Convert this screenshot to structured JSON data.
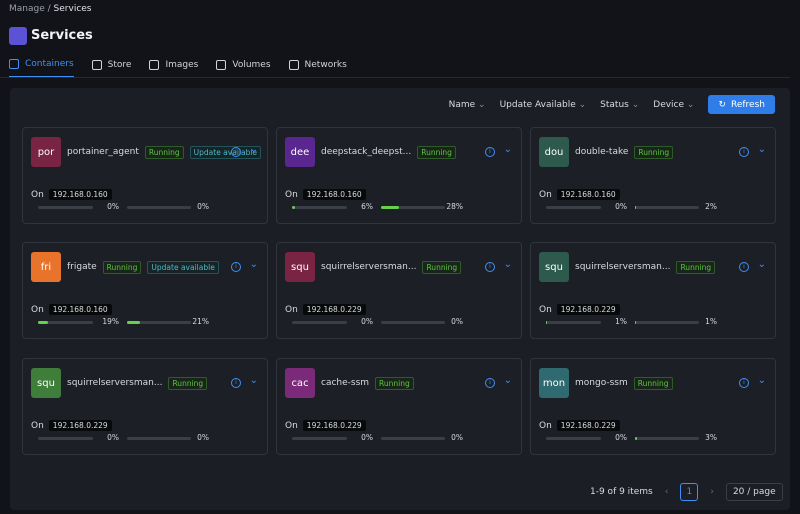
{
  "breadcrumb": {
    "items": [
      "Manage",
      "Services"
    ],
    "separator": "/"
  },
  "header": {
    "title": "Services"
  },
  "tabs": [
    {
      "label": "Containers",
      "active": true
    },
    {
      "label": "Store",
      "active": false
    },
    {
      "label": "Images",
      "active": false
    },
    {
      "label": "Volumes",
      "active": false
    },
    {
      "label": "Networks",
      "active": false
    }
  ],
  "filters": [
    "Name",
    "Update Available",
    "Status",
    "Device"
  ],
  "refresh_button": "Refresh",
  "cards": [
    {
      "avatar": "por",
      "color": "#7a2443",
      "name": "portainer_agent",
      "tags": [
        "Running",
        "Update available"
      ],
      "location_label": "On",
      "ip": "192.168.0.160",
      "cpu": {
        "value": 0,
        "label": "0%"
      },
      "memory": {
        "value": 0,
        "label": "0%"
      }
    },
    {
      "avatar": "dee",
      "color": "#5a2690",
      "name": "deepstack_deepst...",
      "tags": [
        "Running"
      ],
      "location_label": "On",
      "ip": "192.168.0.160",
      "cpu": {
        "value": 6,
        "label": "6%"
      },
      "memory": {
        "value": 28,
        "label": "28%"
      }
    },
    {
      "avatar": "dou",
      "color": "#2e5a4e",
      "name": "double-take",
      "tags": [
        "Running"
      ],
      "location_label": "On",
      "ip": "192.168.0.160",
      "cpu": {
        "value": 0,
        "label": "0%"
      },
      "memory": {
        "value": 2,
        "label": "2%"
      }
    },
    {
      "avatar": "fri",
      "color": "#e8742c",
      "name": "frigate",
      "tags": [
        "Running",
        "Update available"
      ],
      "location_label": "On",
      "ip": "192.168.0.160",
      "cpu": {
        "value": 19,
        "label": "19%"
      },
      "memory": {
        "value": 21,
        "label": "21%"
      }
    },
    {
      "avatar": "squ",
      "color": "#7a2443",
      "name": "squirrelserversman...",
      "tags": [
        "Running"
      ],
      "location_label": "On",
      "ip": "192.168.0.229",
      "cpu": {
        "value": 0,
        "label": "0%"
      },
      "memory": {
        "value": 0,
        "label": "0%"
      }
    },
    {
      "avatar": "squ",
      "color": "#2e5a4e",
      "name": "squirrelserversman...",
      "tags": [
        "Running"
      ],
      "location_label": "On",
      "ip": "192.168.0.229",
      "cpu": {
        "value": 1,
        "label": "1%"
      },
      "memory": {
        "value": 1,
        "label": "1%"
      }
    },
    {
      "avatar": "squ",
      "color": "#3e7d3a",
      "name": "squirrelserversman...",
      "tags": [
        "Running"
      ],
      "location_label": "On",
      "ip": "192.168.0.229",
      "cpu": {
        "value": 0,
        "label": "0%"
      },
      "memory": {
        "value": 0,
        "label": "0%"
      }
    },
    {
      "avatar": "cac",
      "color": "#7a2a78",
      "name": "cache-ssm",
      "tags": [
        "Running"
      ],
      "location_label": "On",
      "ip": "192.168.0.229",
      "cpu": {
        "value": 0,
        "label": "0%"
      },
      "memory": {
        "value": 0,
        "label": "0%"
      }
    },
    {
      "avatar": "mon",
      "color": "#2f6a70",
      "name": "mongo-ssm",
      "tags": [
        "Running"
      ],
      "location_label": "On",
      "ip": "192.168.0.229",
      "cpu": {
        "value": 0,
        "label": "0%"
      },
      "memory": {
        "value": 3,
        "label": "3%"
      }
    }
  ],
  "pagination": {
    "summary": "1-9 of 9 items",
    "current_page": 1,
    "page_size": "20 / page"
  }
}
